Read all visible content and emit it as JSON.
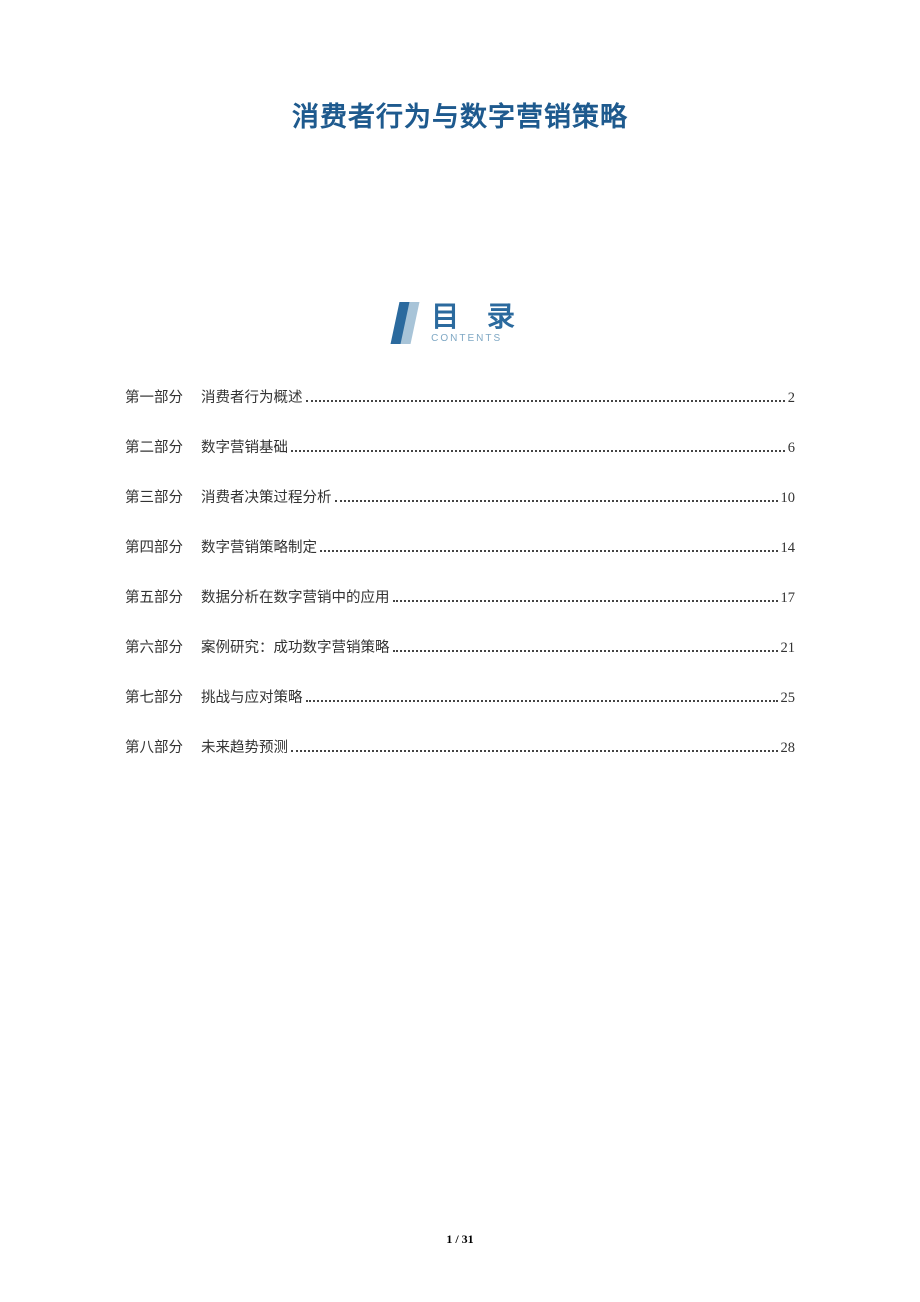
{
  "document": {
    "title": "消费者行为与数字营销策略",
    "title_color": "#1e5a8e",
    "title_fontsize": 27,
    "background_color": "#ffffff"
  },
  "toc": {
    "header_cn": "目 录",
    "header_en": "CONTENTS",
    "header_color": "#2b6a9e",
    "header_en_color": "#7fa8c4",
    "icon_color_primary": "#2b6a9e",
    "icon_color_secondary": "#a8c4d8",
    "entries": [
      {
        "part": "第一部分",
        "title": "消费者行为概述",
        "page": "2"
      },
      {
        "part": "第二部分",
        "title": "数字营销基础",
        "page": "6"
      },
      {
        "part": "第三部分",
        "title": "消费者决策过程分析",
        "page": "10"
      },
      {
        "part": "第四部分",
        "title": "数字营销策略制定",
        "page": "14"
      },
      {
        "part": "第五部分",
        "title": "数据分析在数字营销中的应用",
        "page": "17"
      },
      {
        "part": "第六部分",
        "title": "案例研究：成功数字营销策略",
        "page": "21"
      },
      {
        "part": "第七部分",
        "title": "挑战与应对策略",
        "page": "25"
      },
      {
        "part": "第八部分",
        "title": "未来趋势预测",
        "page": "28"
      }
    ],
    "entry_fontsize": 14.5,
    "entry_color": "#333333",
    "row_spacing": 29
  },
  "footer": {
    "current_page": "1",
    "separator": " / ",
    "total_pages": "31",
    "fontsize": 12
  }
}
